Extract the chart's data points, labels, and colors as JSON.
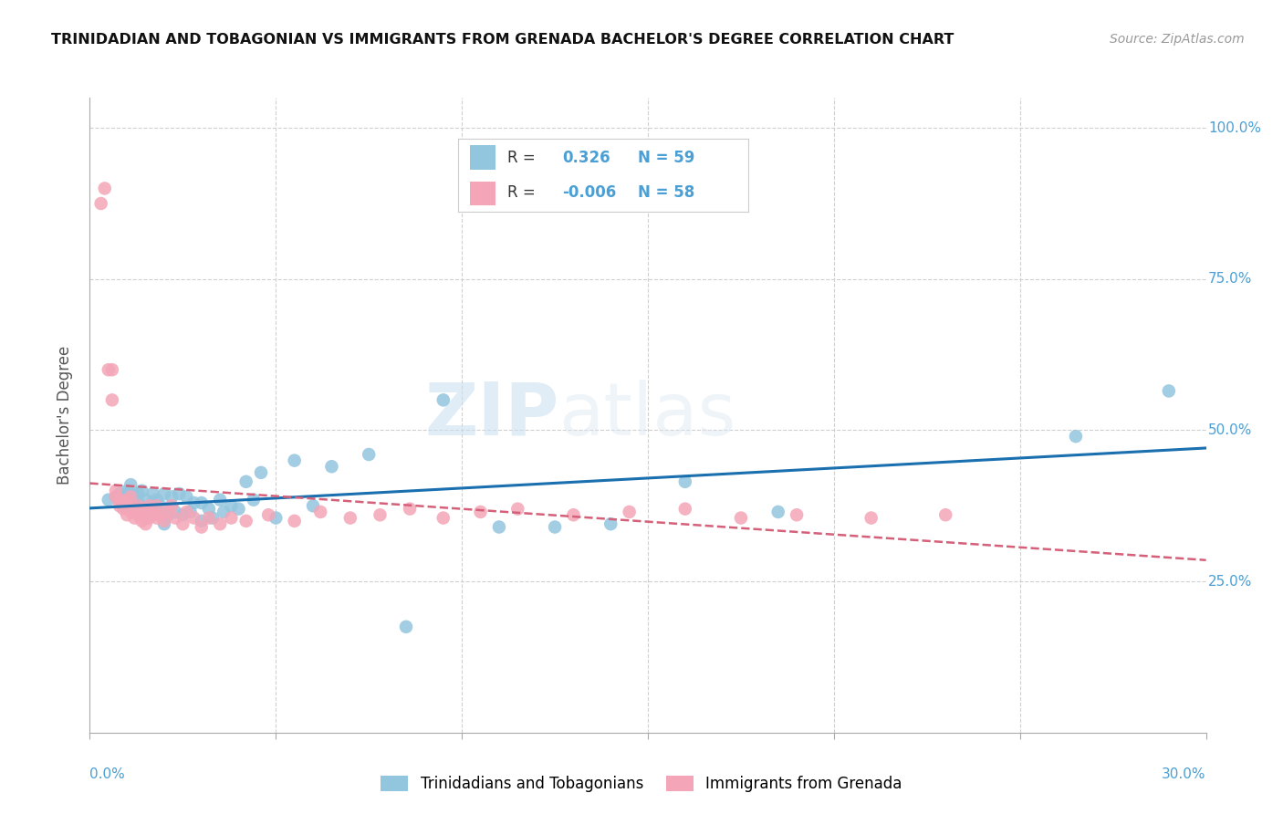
{
  "title": "TRINIDADIAN AND TOBAGONIAN VS IMMIGRANTS FROM GRENADA BACHELOR'S DEGREE CORRELATION CHART",
  "source": "Source: ZipAtlas.com",
  "ylabel": "Bachelor's Degree",
  "blue_color": "#92c5de",
  "pink_color": "#f4a6b8",
  "blue_line_color": "#1a6faf",
  "pink_line_color": "#d4607a",
  "right_ytick_labels": [
    "25.0%",
    "50.0%",
    "75.0%",
    "100.0%"
  ],
  "right_ytick_values": [
    0.25,
    0.5,
    0.75,
    1.0
  ],
  "blue_scatter_x": [
    0.005,
    0.007,
    0.008,
    0.009,
    0.01,
    0.01,
    0.01,
    0.011,
    0.012,
    0.012,
    0.013,
    0.013,
    0.014,
    0.014,
    0.015,
    0.015,
    0.016,
    0.016,
    0.017,
    0.017,
    0.018,
    0.018,
    0.019,
    0.02,
    0.02,
    0.021,
    0.022,
    0.022,
    0.023,
    0.024,
    0.025,
    0.026,
    0.027,
    0.028,
    0.03,
    0.03,
    0.032,
    0.033,
    0.035,
    0.036,
    0.038,
    0.04,
    0.042,
    0.044,
    0.046,
    0.05,
    0.055,
    0.06,
    0.065,
    0.075,
    0.085,
    0.095,
    0.11,
    0.125,
    0.14,
    0.16,
    0.185,
    0.265,
    0.29
  ],
  "blue_scatter_y": [
    0.385,
    0.39,
    0.395,
    0.375,
    0.38,
    0.395,
    0.4,
    0.41,
    0.375,
    0.39,
    0.38,
    0.395,
    0.37,
    0.4,
    0.37,
    0.385,
    0.36,
    0.375,
    0.38,
    0.395,
    0.37,
    0.385,
    0.375,
    0.345,
    0.395,
    0.36,
    0.375,
    0.39,
    0.365,
    0.395,
    0.36,
    0.39,
    0.365,
    0.38,
    0.35,
    0.38,
    0.37,
    0.355,
    0.385,
    0.365,
    0.375,
    0.37,
    0.415,
    0.385,
    0.43,
    0.355,
    0.45,
    0.375,
    0.44,
    0.46,
    0.175,
    0.55,
    0.34,
    0.34,
    0.345,
    0.415,
    0.365,
    0.49,
    0.565
  ],
  "pink_scatter_x": [
    0.003,
    0.004,
    0.005,
    0.006,
    0.006,
    0.007,
    0.007,
    0.008,
    0.008,
    0.009,
    0.009,
    0.01,
    0.01,
    0.01,
    0.011,
    0.011,
    0.012,
    0.012,
    0.013,
    0.013,
    0.014,
    0.014,
    0.015,
    0.015,
    0.016,
    0.016,
    0.017,
    0.018,
    0.018,
    0.019,
    0.02,
    0.021,
    0.022,
    0.023,
    0.025,
    0.026,
    0.028,
    0.03,
    0.032,
    0.035,
    0.038,
    0.042,
    0.048,
    0.055,
    0.062,
    0.07,
    0.078,
    0.086,
    0.095,
    0.105,
    0.115,
    0.13,
    0.145,
    0.16,
    0.175,
    0.19,
    0.21,
    0.23
  ],
  "pink_scatter_y": [
    0.875,
    0.9,
    0.6,
    0.6,
    0.55,
    0.39,
    0.4,
    0.385,
    0.375,
    0.37,
    0.38,
    0.36,
    0.375,
    0.385,
    0.365,
    0.39,
    0.355,
    0.37,
    0.36,
    0.375,
    0.35,
    0.37,
    0.345,
    0.365,
    0.355,
    0.375,
    0.36,
    0.355,
    0.375,
    0.36,
    0.35,
    0.365,
    0.375,
    0.355,
    0.345,
    0.365,
    0.355,
    0.34,
    0.355,
    0.345,
    0.355,
    0.35,
    0.36,
    0.35,
    0.365,
    0.355,
    0.36,
    0.37,
    0.355,
    0.365,
    0.37,
    0.36,
    0.365,
    0.37,
    0.355,
    0.36,
    0.355,
    0.36
  ],
  "xlim": [
    0.0,
    0.3
  ],
  "ylim": [
    0.0,
    1.05
  ],
  "watermark_zip": "ZIP",
  "watermark_atlas": "atlas",
  "grid_color": "#d0d0d0",
  "bottom_legend_labels": [
    "Trinidadians and Tobagonians",
    "Immigrants from Grenada"
  ]
}
